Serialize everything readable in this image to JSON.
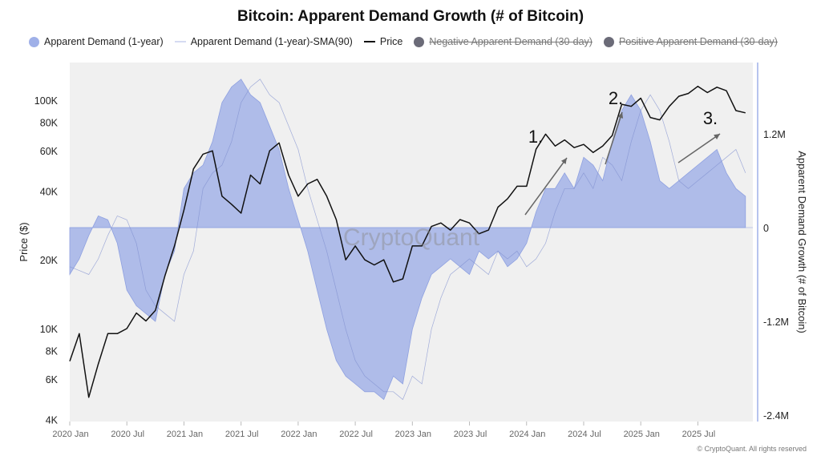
{
  "chart_data": {
    "type": "area+line",
    "title": "Bitcoin: Apparent Demand Growth (# of Bitcoin)",
    "legend": {
      "placement": "top",
      "items": [
        {
          "label": "Apparent Demand (1-year)",
          "color": "#9fb0e8",
          "marker": "dot",
          "hidden": false
        },
        {
          "label": "Apparent Demand (1-year)-SMA(90)",
          "color": "#c5cdee",
          "marker": "line",
          "hidden": false
        },
        {
          "label": "Price",
          "color": "#111111",
          "marker": "line",
          "hidden": false
        },
        {
          "label": "Negative Apparent Demand (30-day)",
          "color": "#6b6b78",
          "marker": "dot",
          "hidden": true
        },
        {
          "label": "Positive Apparent Demand (30-day)",
          "color": "#6b6b78",
          "marker": "dot",
          "hidden": true
        }
      ]
    },
    "y_left": {
      "label": "Price ($)",
      "scale": "log",
      "range": [
        4000,
        170000
      ],
      "ticks": [
        "4K",
        "6K",
        "8K",
        "10K",
        "20K",
        "40K",
        "60K",
        "80K",
        "100K"
      ],
      "tick_values": [
        4000,
        6000,
        8000,
        10000,
        20000,
        40000,
        60000,
        80000,
        100000
      ]
    },
    "y_right": {
      "label": "Apparent Demand Growth (# of Bitcoin)",
      "scale": "linear",
      "range": [
        -2500000,
        2100000
      ],
      "ticks": [
        "-2.4M",
        "-1.2M",
        "0",
        "1.2M"
      ],
      "tick_values": [
        -2400000,
        -1200000,
        0,
        1200000
      ]
    },
    "x": {
      "ticks": [
        "2020 Jan",
        "2020 Jul",
        "2021 Jan",
        "2021 Jul",
        "2022 Jan",
        "2022 Jul",
        "2023 Jan",
        "2023 Jul",
        "2024 Jan",
        "2024 Jul",
        "2025 Jan",
        "2025 Jul"
      ],
      "start": "2020-01",
      "frequency": "monthly"
    },
    "grid": false,
    "watermark": "CryptoQuant",
    "price": [
      7200,
      9500,
      5000,
      7000,
      9500,
      9500,
      10000,
      11700,
      10800,
      12000,
      17000,
      23000,
      33000,
      50000,
      58000,
      60000,
      38000,
      35000,
      32000,
      47000,
      43000,
      60000,
      65000,
      47000,
      38000,
      43000,
      45000,
      38000,
      30000,
      20000,
      23000,
      20000,
      19000,
      20000,
      16000,
      16500,
      23000,
      23000,
      28000,
      29000,
      27000,
      30000,
      29000,
      26000,
      27000,
      34000,
      37000,
      42000,
      42000,
      61000,
      71000,
      63000,
      67000,
      62000,
      64000,
      59000,
      63000,
      70000,
      96000,
      94000,
      102000,
      84000,
      82000,
      94000,
      104000,
      107000,
      115000,
      108000,
      114000,
      110000,
      90000,
      88000
    ],
    "apparent_demand": [
      -600000,
      -400000,
      -100000,
      150000,
      100000,
      -200000,
      -800000,
      -1000000,
      -1100000,
      -1200000,
      -600000,
      -300000,
      500000,
      700000,
      800000,
      1100000,
      1600000,
      1800000,
      1900000,
      1700000,
      1600000,
      1300000,
      1000000,
      500000,
      100000,
      -300000,
      -800000,
      -1300000,
      -1700000,
      -1900000,
      -2000000,
      -2100000,
      -2100000,
      -2200000,
      -1900000,
      -2000000,
      -1300000,
      -900000,
      -600000,
      -500000,
      -400000,
      -500000,
      -600000,
      -300000,
      -400000,
      -300000,
      -500000,
      -400000,
      -200000,
      200000,
      500000,
      500000,
      700000,
      500000,
      900000,
      800000,
      600000,
      1100000,
      1500000,
      1700000,
      1500000,
      1100000,
      600000,
      500000,
      600000,
      700000,
      800000,
      900000,
      1000000,
      700000,
      500000,
      400000
    ],
    "apparent_demand_sma90": [
      -500000,
      -550000,
      -600000,
      -400000,
      -100000,
      150000,
      100000,
      -200000,
      -800000,
      -1000000,
      -1100000,
      -1200000,
      -600000,
      -300000,
      500000,
      700000,
      800000,
      1100000,
      1600000,
      1800000,
      1900000,
      1700000,
      1600000,
      1300000,
      1000000,
      500000,
      100000,
      -300000,
      -800000,
      -1300000,
      -1700000,
      -1900000,
      -2000000,
      -2100000,
      -2100000,
      -2200000,
      -1900000,
      -2000000,
      -1300000,
      -900000,
      -600000,
      -500000,
      -400000,
      -500000,
      -600000,
      -300000,
      -400000,
      -300000,
      -500000,
      -400000,
      -200000,
      200000,
      500000,
      500000,
      700000,
      500000,
      900000,
      800000,
      600000,
      1100000,
      1500000,
      1700000,
      1500000,
      1100000,
      600000,
      500000,
      600000,
      700000,
      800000,
      900000,
      1000000,
      700000
    ],
    "annotations": [
      {
        "label": "1.",
        "date": "2024-01",
        "note_price": 70000
      },
      {
        "label": "2.",
        "date": "2024-09",
        "note_price": 105000
      },
      {
        "label": "3.",
        "date": "2025-08",
        "note_price": 88000
      }
    ]
  },
  "footer": {
    "copyright": "© CryptoQuant. All rights reserved"
  }
}
